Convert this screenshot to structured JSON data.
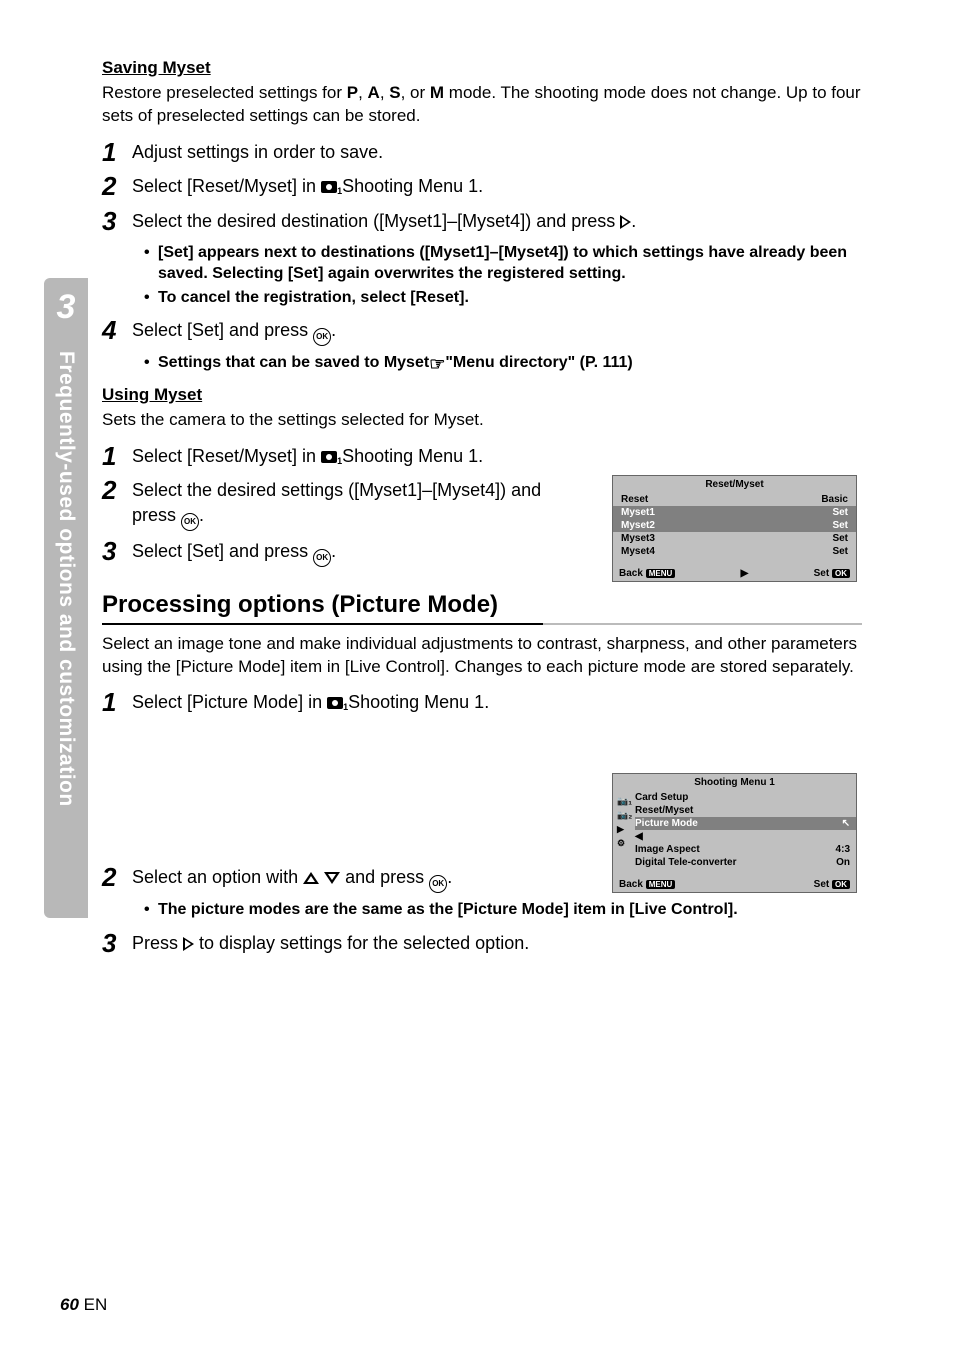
{
  "sidebar": {
    "chapter": "3",
    "label": "Frequently-used options and customization"
  },
  "subheads": {
    "saving": "Saving Myset",
    "using": "Using Myset"
  },
  "paras": {
    "restore": [
      "Restore preselected settings for ",
      "P",
      ", ",
      "A",
      ", ",
      "S",
      ", or ",
      "M",
      " mode. The shooting mode does not change. Up to four sets of preselected settings can be stored."
    ],
    "setsCamera": "Sets the camera to the settings selected for Myset.",
    "procDesc": "Select an image tone and make individual adjustments to contrast, sharpness, and other parameters using the [Picture Mode] item in [Live Control]. Changes to each picture mode are stored separately.",
    "picModesSame": "The picture modes are the same as the [Picture Mode] item in [Live Control]."
  },
  "steps": {
    "s1": "Adjust settings in order to save.",
    "s2a": "Select [Reset/Myset] in ",
    "s2b": " Shooting Menu 1.",
    "s3a": "Select the desired destination ([Myset1]–[Myset4]) and press ",
    "s3suf": ".",
    "s3b1": "[Set] appears next to destinations ([Myset1]–[Myset4]) to which settings have already been saved. Selecting [Set] again overwrites the registered setting.",
    "s3b2": "To cancel the registration, select [Reset].",
    "s4a": "Select [Set] and press ",
    "s4suf": ".",
    "s4b": "Settings that can be saved to Myset ",
    "s4c": " \"Menu directory\" (P. 111)",
    "u1a": "Select [Reset/Myset] in ",
    "u1b": " Shooting Menu 1.",
    "u2a": "Select the desired settings ([Myset1]–[Myset4]) and press ",
    "u2suf": ".",
    "u3a": "Select [Set] and press ",
    "u3suf": ".",
    "p1a": "Select [Picture Mode] in ",
    "p1b": " Shooting Menu 1.",
    "p2a": "Select an option with ",
    "p2b": " and press ",
    "p2suf": ".",
    "p3a": "Press ",
    "p3b": " to display settings for the selected option."
  },
  "h2": {
    "proc": "Processing options (Picture Mode)"
  },
  "lcd1": {
    "title": "Reset/Myset",
    "rows": [
      {
        "l": "Reset",
        "r": "Basic",
        "hl": false
      },
      {
        "l": "Myset1",
        "r": "Set",
        "hl": true
      },
      {
        "l": "Myset2",
        "r": "Set",
        "hl": true
      },
      {
        "l": "Myset3",
        "r": "Set",
        "hl": false
      },
      {
        "l": "Myset4",
        "r": "Set",
        "hl": false
      }
    ],
    "footer": {
      "back": "Back",
      "backBtn": "MENU",
      "mid": "▶",
      "set": "Set",
      "setBtn": "OK"
    }
  },
  "lcd2": {
    "title": "Shooting Menu 1",
    "sideIcons": [
      "📷₁",
      "📷₂",
      "▶",
      "⚙"
    ],
    "rows": [
      {
        "l": "Card Setup",
        "r": ""
      },
      {
        "l": "Reset/Myset",
        "r": ""
      },
      {
        "l": "Picture Mode",
        "r": "↖",
        "sel": true
      },
      {
        "l": "◀",
        "r": ""
      },
      {
        "l": "Image Aspect",
        "r": "4:3"
      },
      {
        "l": "Digital Tele-converter",
        "r": "On"
      }
    ],
    "footer": {
      "back": "Back",
      "backBtn": "MENU",
      "set": "Set",
      "setBtn": "OK"
    }
  },
  "footer": {
    "page": "60",
    "lang": "EN"
  }
}
